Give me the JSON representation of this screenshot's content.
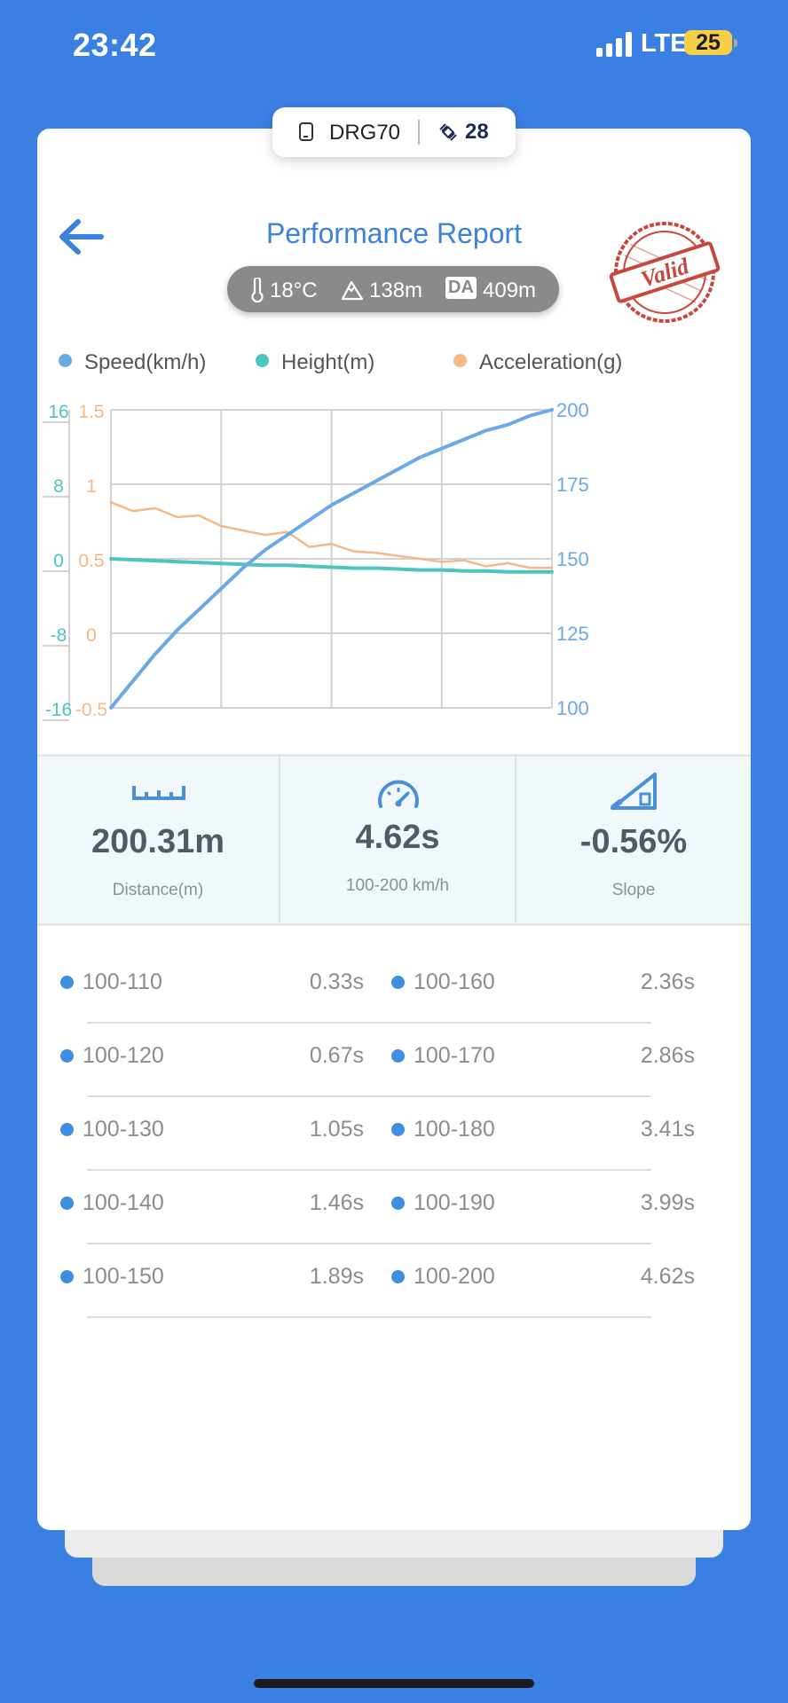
{
  "status_bar": {
    "time": "23:42",
    "network": "LTE",
    "battery": "25"
  },
  "device": {
    "name": "DRG70",
    "satellites": "28"
  },
  "header": {
    "title": "Performance Report",
    "stamp_text": "Valid"
  },
  "environment": {
    "temperature": "18°C",
    "altitude": "138m",
    "da_badge": "DA",
    "density_altitude": "409m"
  },
  "legend": {
    "speed": "Speed(km/h)",
    "height": "Height(m)",
    "acceleration": "Acceleration(g)"
  },
  "colors": {
    "speed": "#6aa8e6",
    "height": "#4cc4bf",
    "acceleration": "#f5b886",
    "accent": "#3b82d9",
    "stamp": "#c9483e"
  },
  "chart_data": {
    "type": "line",
    "x": [
      0,
      0.05,
      0.1,
      0.15,
      0.2,
      0.25,
      0.3,
      0.35,
      0.4,
      0.45,
      0.5,
      0.55,
      0.6,
      0.65,
      0.7,
      0.75,
      0.8,
      0.85,
      0.9,
      0.95,
      1.0
    ],
    "series": [
      {
        "name": "Speed(km/h)",
        "axis": "right",
        "values": [
          100,
          109,
          118,
          126,
          133,
          140,
          147,
          153,
          158,
          163,
          168,
          172,
          176,
          180,
          184,
          187,
          190,
          193,
          195,
          198,
          200
        ]
      },
      {
        "name": "Height(m)",
        "axis": "left-outer",
        "values": [
          0.0,
          -0.1,
          -0.2,
          -0.3,
          -0.4,
          -0.5,
          -0.6,
          -0.7,
          -0.7,
          -0.8,
          -0.9,
          -1.0,
          -1.0,
          -1.1,
          -1.2,
          -1.2,
          -1.3,
          -1.3,
          -1.4,
          -1.4,
          -1.4
        ]
      },
      {
        "name": "Acceleration(g)",
        "axis": "left-inner",
        "values": [
          0.88,
          0.82,
          0.84,
          0.78,
          0.79,
          0.72,
          0.69,
          0.66,
          0.68,
          0.58,
          0.6,
          0.55,
          0.54,
          0.52,
          0.5,
          0.48,
          0.49,
          0.45,
          0.47,
          0.44,
          0.44
        ]
      }
    ],
    "right_axis": {
      "ticks": [
        "200",
        "175",
        "150",
        "125",
        "100"
      ],
      "range": [
        100,
        200
      ]
    },
    "left_outer_axis": {
      "ticks": [
        "16",
        "8",
        "0",
        "-8",
        "-16"
      ],
      "range": [
        -16,
        16
      ]
    },
    "left_inner_axis": {
      "ticks": [
        "1.5",
        "1",
        "0.5",
        "0",
        "-0.5"
      ],
      "range": [
        -0.5,
        1.5
      ]
    },
    "grid": true
  },
  "stats": [
    {
      "value": "200.31m",
      "label": "Distance(m)",
      "icon": "ruler-icon"
    },
    {
      "value": "4.62s",
      "label": "100-200 km/h",
      "icon": "speedometer-icon"
    },
    {
      "value": "-0.56%",
      "label": "Slope",
      "icon": "slope-icon"
    }
  ],
  "splits": [
    {
      "left_label": "100-110",
      "left_value": "0.33s",
      "right_label": "100-160",
      "right_value": "2.36s"
    },
    {
      "left_label": "100-120",
      "left_value": "0.67s",
      "right_label": "100-170",
      "right_value": "2.86s"
    },
    {
      "left_label": "100-130",
      "left_value": "1.05s",
      "right_label": "100-180",
      "right_value": "3.41s"
    },
    {
      "left_label": "100-140",
      "left_value": "1.46s",
      "right_label": "100-190",
      "right_value": "3.99s"
    },
    {
      "left_label": "100-150",
      "left_value": "1.89s",
      "right_label": "100-200",
      "right_value": "4.62s"
    }
  ]
}
